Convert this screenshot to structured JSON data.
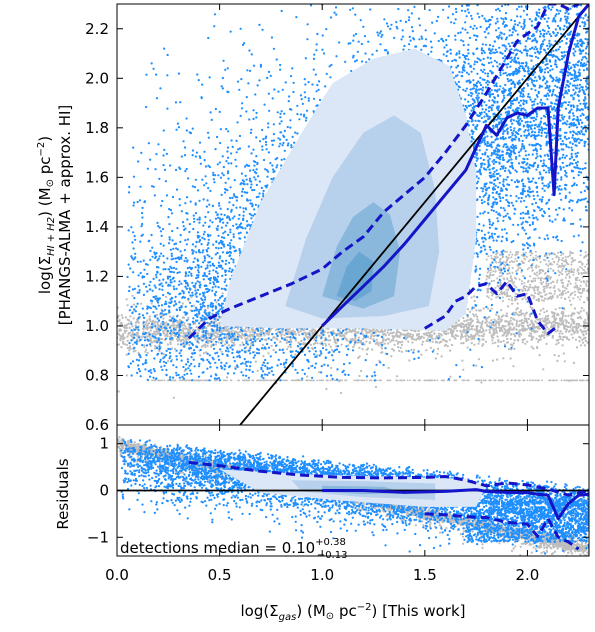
{
  "chart_data": [
    {
      "type": "scatter",
      "panel": "main",
      "ylabel": "log(Σ$HI+H2$) (M☉ pc⁻²)",
      "ylabel_line1": "log(Σ",
      "ylabel_sub": "HI + H2",
      "ylabel_line1b": ") (M",
      "ylabel_sun": "⊙",
      "ylabel_line1c": " pc",
      "ylabel_sup": "−2",
      "ylabel_line1d": ")",
      "ylabel_line2": "[PHANGS-ALMA + approx. HI]",
      "xlim": [
        0.0,
        2.3
      ],
      "ylim": [
        0.6,
        2.3
      ],
      "y_ticks": [
        "0.6",
        "0.8",
        "1.0",
        "1.2",
        "1.4",
        "1.6",
        "1.8",
        "2.0",
        "2.2"
      ],
      "y_tick_values": [
        0.6,
        0.8,
        1.0,
        1.2,
        1.4,
        1.6,
        1.8,
        2.0,
        2.2
      ],
      "one_to_one_line": [
        [
          0.6,
          0.6
        ],
        [
          2.3,
          2.3
        ]
      ],
      "median": {
        "x": [
          1.0,
          1.1,
          1.2,
          1.3,
          1.4,
          1.5,
          1.6,
          1.7,
          1.75,
          1.8,
          1.85,
          1.9,
          1.95,
          2.0,
          2.05,
          2.1,
          2.13,
          2.15,
          2.2,
          2.25,
          2.3
        ],
        "y": [
          1.0,
          1.08,
          1.16,
          1.24,
          1.33,
          1.43,
          1.53,
          1.63,
          1.72,
          1.81,
          1.77,
          1.84,
          1.86,
          1.85,
          1.88,
          1.88,
          1.53,
          1.88,
          2.1,
          2.25,
          2.3
        ]
      },
      "upper_percentile": {
        "x": [
          1.0,
          1.1,
          1.2,
          1.3,
          1.4,
          1.5,
          1.6,
          1.7,
          1.75,
          1.8,
          1.85,
          1.9,
          2.0,
          2.05,
          2.1
        ],
        "y": [
          1.0,
          1.08,
          1.16,
          1.24,
          1.33,
          1.43,
          1.53,
          1.63,
          1.72,
          1.81,
          1.77,
          1.84,
          1.86,
          1.85,
          1.88
        ]
      },
      "upper_dashed": {
        "x": [
          0.35,
          0.45,
          0.55,
          0.7,
          0.85,
          1.0,
          1.1,
          1.2,
          1.3,
          1.4,
          1.5,
          1.6,
          1.7,
          1.8,
          1.9,
          1.95,
          2.0,
          2.05,
          2.1,
          2.15,
          2.2,
          2.25
        ],
        "y": [
          0.95,
          1.03,
          1.07,
          1.12,
          1.17,
          1.23,
          1.3,
          1.36,
          1.46,
          1.53,
          1.6,
          1.7,
          1.81,
          1.94,
          2.08,
          2.15,
          2.18,
          2.21,
          2.3,
          2.3,
          2.28,
          2.3
        ]
      },
      "lower_dashed": {
        "x": [
          1.5,
          1.6,
          1.65,
          1.7,
          1.75,
          1.8,
          1.85,
          1.9,
          1.95,
          2.0,
          2.05,
          2.1,
          2.15
        ],
        "y": [
          0.99,
          1.04,
          1.1,
          1.12,
          1.16,
          1.17,
          1.13,
          1.18,
          1.12,
          1.13,
          1.02,
          0.97,
          1.0
        ]
      },
      "colors": {
        "detections": "#1f8fff",
        "nondetections": "#bdbdbd",
        "contour_outer": "#dbe7f7",
        "contour_mid": "#b7d1ec",
        "contour_inner": "#8ab8dc",
        "contour_core": "#6aa6d2",
        "median_line": "#1414c8",
        "one_to_one": "#000000"
      }
    },
    {
      "type": "scatter",
      "panel": "residuals",
      "ylabel": "Residuals",
      "xlabel_pre": "log(Σ",
      "xlabel_sub": "gas",
      "xlabel_mid": ") (M",
      "xlabel_sun": "⊙",
      "xlabel_pc": " pc",
      "xlabel_sup": "−2",
      "xlabel_post": ") [This work]",
      "xlim": [
        0.0,
        2.3
      ],
      "ylim": [
        -1.4,
        1.4
      ],
      "x_ticks": [
        "0.0",
        "0.5",
        "1.0",
        "1.5",
        "2.0"
      ],
      "x_tick_values": [
        0.0,
        0.5,
        1.0,
        1.5,
        2.0
      ],
      "y_ticks": [
        "−1",
        "0",
        "1"
      ],
      "y_tick_values": [
        -1,
        0,
        1
      ],
      "annotation_pre": "detections median = 0.10",
      "annotation_sup": "+0.38",
      "annotation_sub": "−0.13",
      "median": {
        "x": [
          1.0,
          1.2,
          1.4,
          1.6,
          1.75,
          1.8,
          1.9,
          2.0,
          2.05,
          2.1,
          2.15,
          2.2,
          2.25,
          2.3
        ],
        "y": [
          0.0,
          0.0,
          -0.04,
          -0.02,
          0.02,
          -0.02,
          -0.04,
          -0.05,
          -0.08,
          -0.1,
          -0.6,
          -0.28,
          -0.1,
          -0.08
        ]
      },
      "upper_dashed": {
        "x": [
          0.35,
          0.5,
          0.7,
          0.9,
          1.1,
          1.3,
          1.5,
          1.6,
          1.7,
          1.8,
          1.9,
          2.0,
          2.1,
          2.2,
          2.3
        ],
        "y": [
          0.6,
          0.53,
          0.41,
          0.33,
          0.28,
          0.27,
          0.28,
          0.3,
          0.22,
          0.1,
          0.16,
          0.12,
          0.03,
          -0.1,
          0.0
        ]
      },
      "lower_dashed": {
        "x": [
          1.5,
          1.6,
          1.7,
          1.8,
          1.9,
          2.0,
          2.05,
          2.1,
          2.15,
          2.2,
          2.25
        ],
        "y": [
          -0.5,
          -0.52,
          -0.56,
          -0.58,
          -0.68,
          -0.72,
          -0.98,
          -0.6,
          -1.0,
          -1.1,
          -1.25
        ]
      }
    }
  ]
}
